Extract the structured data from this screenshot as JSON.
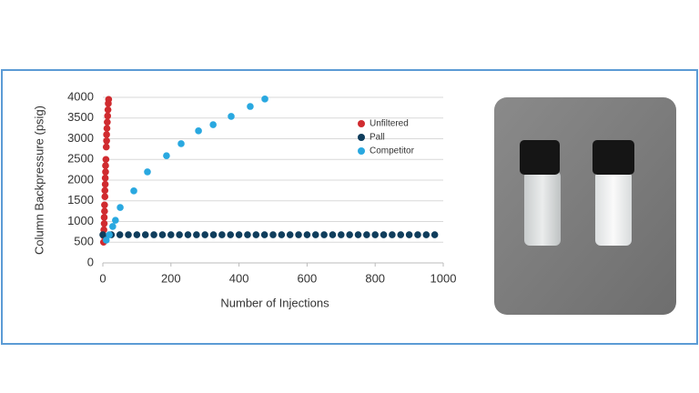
{
  "chart_data": {
    "type": "scatter",
    "x_label": "Number of Injections",
    "y_label": "Column Backpressure (psig)",
    "xlim": [
      0,
      1000
    ],
    "xticks": [
      0,
      200,
      400,
      600,
      800,
      1000
    ],
    "ylim": [
      0,
      4000
    ],
    "yticks": [
      0,
      500,
      1000,
      1500,
      2000,
      2500,
      3000,
      3500,
      4000
    ],
    "grid": true,
    "legend": "upper right",
    "series": [
      {
        "name": "Unfiltered",
        "color": "#d02b2f",
        "x": [
          2,
          3,
          3,
          4,
          4,
          5,
          5,
          6,
          6,
          7,
          7,
          8,
          8,
          9,
          10,
          11,
          11,
          12,
          13,
          14,
          15,
          16,
          17
        ],
        "values": [
          500,
          650,
          800,
          950,
          1100,
          1250,
          1400,
          1600,
          1750,
          1900,
          2050,
          2200,
          2350,
          2500,
          2800,
          2950,
          3100,
          3250,
          3400,
          3550,
          3700,
          3850,
          3950
        ]
      },
      {
        "name": "Pall",
        "color": "#0f3d5c",
        "x": [
          0,
          25,
          50,
          75,
          100,
          125,
          150,
          175,
          200,
          225,
          250,
          275,
          300,
          325,
          350,
          375,
          400,
          425,
          450,
          475,
          500,
          525,
          550,
          575,
          600,
          625,
          650,
          675,
          700,
          725,
          750,
          775,
          800,
          825,
          850,
          875,
          900,
          925,
          950,
          975
        ],
        "values": [
          680,
          680,
          680,
          680,
          680,
          680,
          680,
          680,
          680,
          680,
          680,
          680,
          680,
          680,
          680,
          680,
          680,
          680,
          680,
          680,
          680,
          680,
          680,
          680,
          680,
          680,
          680,
          680,
          680,
          680,
          680,
          680,
          680,
          680,
          680,
          680,
          680,
          680,
          680,
          680
        ]
      },
      {
        "name": "Competitor",
        "color": "#29a8e0",
        "x": [
          10,
          19,
          29,
          37,
          51,
          91,
          131,
          187,
          230,
          281,
          324,
          377,
          433,
          476
        ],
        "values": [
          550,
          680,
          880,
          1030,
          1340,
          1740,
          2200,
          2590,
          2880,
          3190,
          3340,
          3540,
          3780,
          3960
        ]
      }
    ]
  }
}
